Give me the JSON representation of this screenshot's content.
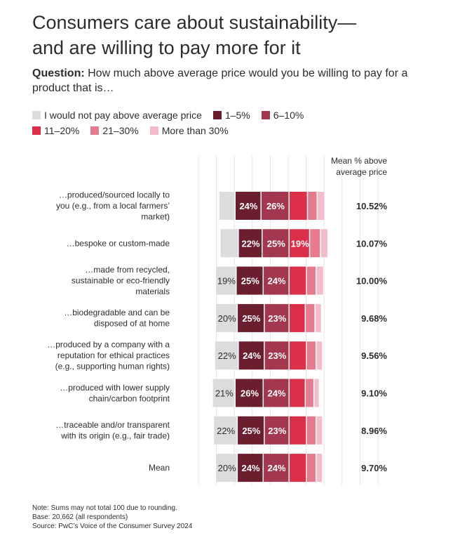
{
  "title_line1": "Consumers care about sustainability—",
  "title_line2": "and are willing to pay more for it",
  "question": {
    "label": "Question:",
    "text": " How much above average price would you be willing to pay for a product that is…"
  },
  "colors": {
    "would_not": "#dcdcdc",
    "p1_5": "#6b1f2e",
    "p6_10": "#a3374d",
    "p11_20": "#dc2f4a",
    "p21_30": "#e47b8e",
    "more30": "#f2bdc8"
  },
  "chart_data": {
    "type": "bar",
    "orientation": "horizontal",
    "stacked": true,
    "legend_position": "top",
    "grid": true,
    "mean_header": [
      "Mean % above",
      "average price"
    ],
    "categories": [
      [
        "…produced/sourced locally to",
        "you (e.g., from a local farmers’",
        "market)"
      ],
      [
        "…bespoke or custom-made"
      ],
      [
        "…made from recycled,",
        "sustainable or eco-friendly",
        "materials"
      ],
      [
        "…biodegradable and can be",
        "disposed of at home"
      ],
      [
        "…produced by a company with a",
        "reputation for ethical practices",
        "(e.g., supporting human rights)"
      ],
      [
        "…produced with lower supply",
        "chain/carbon footprint"
      ],
      [
        "…traceable and/or transparent",
        "with its origin (e.g., fair trade)"
      ],
      [
        "Mean"
      ]
    ],
    "series": [
      {
        "name": "I would not pay above average price",
        "color_key": "would_not",
        "values": [
          15,
          17,
          19,
          20,
          22,
          21,
          22,
          20
        ],
        "labels": [
          "",
          "",
          "19%",
          "20%",
          "22%",
          "21%",
          "22%",
          "20%"
        ]
      },
      {
        "name": "1–5%",
        "color_key": "p1_5",
        "values": [
          24,
          22,
          25,
          25,
          24,
          26,
          25,
          24
        ],
        "labels": [
          "24%",
          "22%",
          "25%",
          "25%",
          "24%",
          "26%",
          "25%",
          "24%"
        ]
      },
      {
        "name": "6–10%",
        "color_key": "p6_10",
        "values": [
          26,
          25,
          24,
          23,
          23,
          24,
          23,
          24
        ],
        "labels": [
          "26%",
          "25%",
          "24%",
          "23%",
          "23%",
          "24%",
          "23%",
          "24%"
        ]
      },
      {
        "name": "11–20%",
        "color_key": "p11_20",
        "values": [
          17,
          19,
          16,
          15,
          16,
          15,
          16,
          16
        ],
        "labels": [
          "",
          "19%",
          "",
          "",
          "",
          "",
          "",
          ""
        ]
      },
      {
        "name": "21–30%",
        "color_key": "p21_30",
        "values": [
          9,
          10,
          9,
          9,
          9,
          8,
          9,
          9
        ],
        "labels": [
          "",
          "",
          "",
          "",
          "",
          "",
          "",
          ""
        ]
      },
      {
        "name": "More than 30%",
        "color_key": "more30",
        "values": [
          7,
          7,
          7,
          6,
          6,
          5,
          6,
          6
        ],
        "labels": [
          "",
          "",
          "",
          "",
          "",
          "",
          "",
          ""
        ]
      }
    ],
    "means": [
      "10.52%",
      "10.07%",
      "10.00%",
      "9.68%",
      "9.56%",
      "9.10%",
      "8.96%",
      "9.70%"
    ]
  },
  "notes": [
    "Note: Sums may not total 100 due to rounding.",
    "Base: 20,662 (all respondents)",
    "Source: PwC’s Voice of the Consumer Survey 2024"
  ]
}
